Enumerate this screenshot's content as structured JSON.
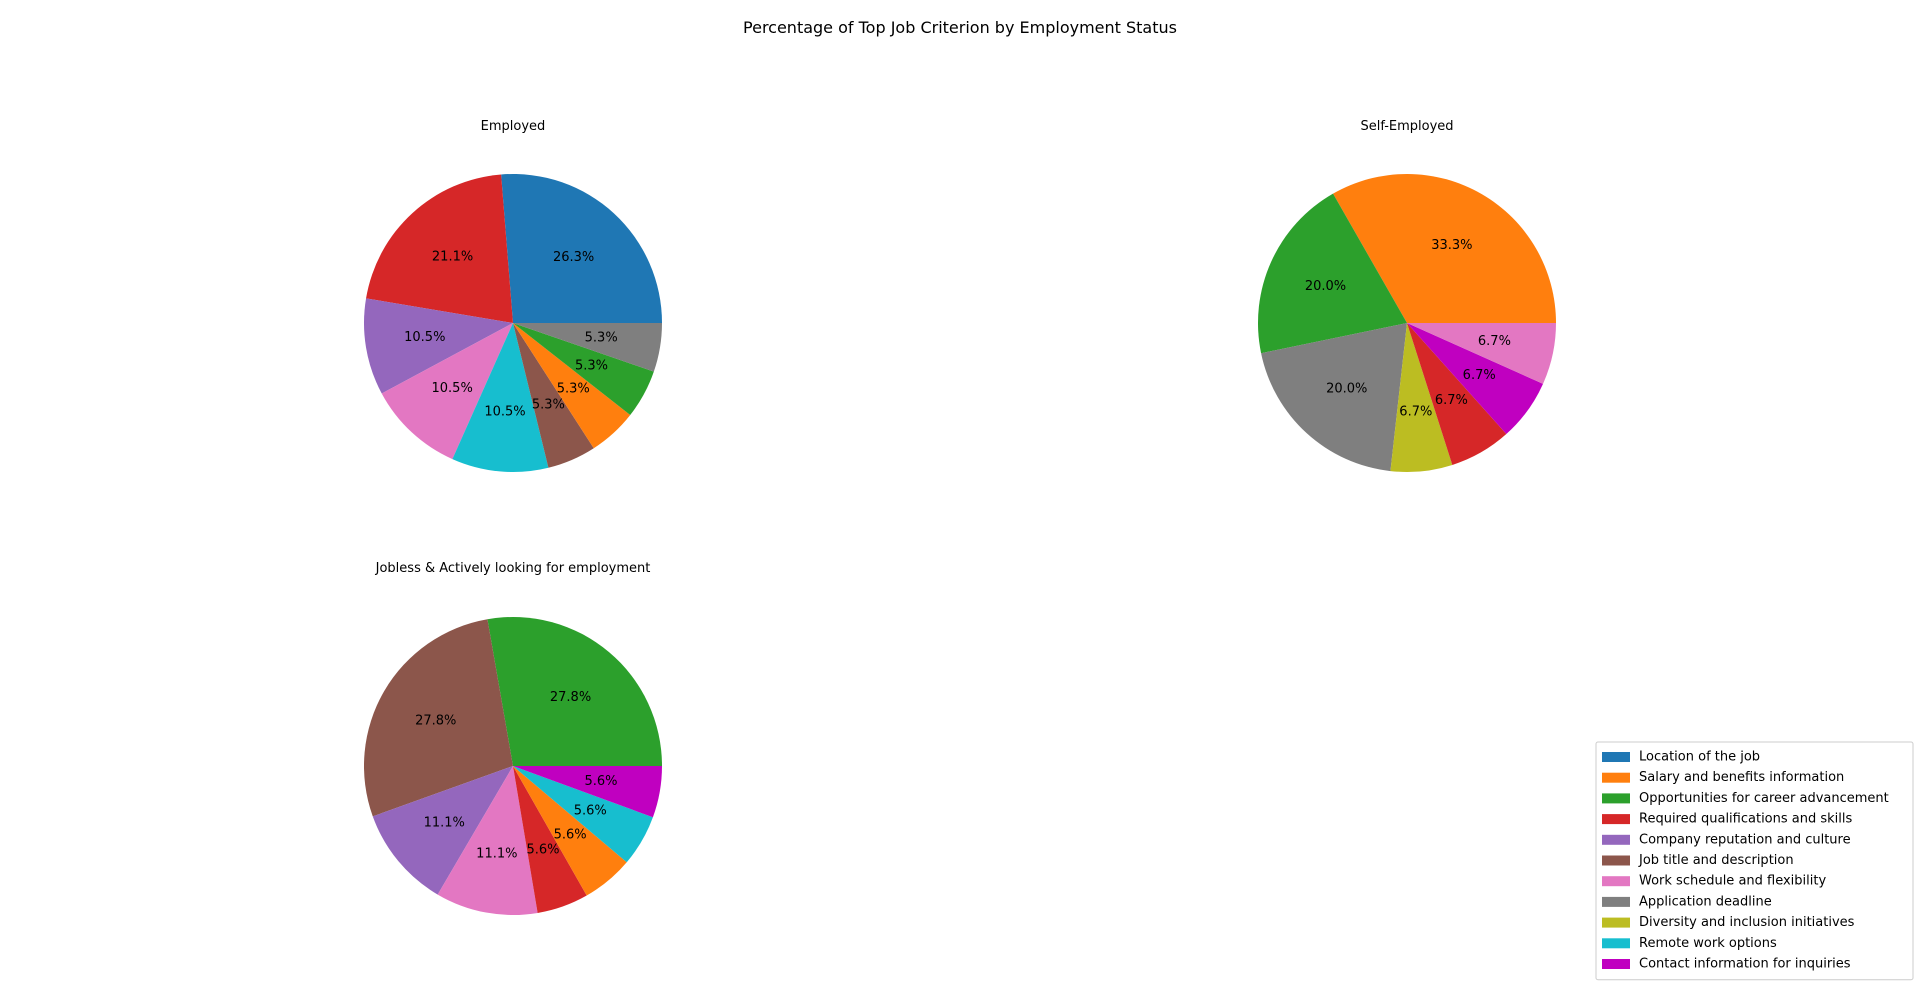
{
  "suptitle": "Percentage of Top Job Criterion by Employment Status",
  "categories": [
    {
      "name": "Location of the job",
      "color": "#1f77b4"
    },
    {
      "name": "Salary and benefits information",
      "color": "#ff7f0e"
    },
    {
      "name": "Opportunities for career advancement",
      "color": "#2ca02c"
    },
    {
      "name": "Required qualifications and skills",
      "color": "#d62728"
    },
    {
      "name": "Company reputation and culture",
      "color": "#9467bd"
    },
    {
      "name": "Job title and description",
      "color": "#8c564b"
    },
    {
      "name": "Work schedule and flexibility",
      "color": "#e377c2"
    },
    {
      "name": "Application deadline",
      "color": "#7f7f7f"
    },
    {
      "name": "Diversity and inclusion initiatives",
      "color": "#bcbd22"
    },
    {
      "name": "Remote work options",
      "color": "#17becf"
    },
    {
      "name": "Contact information for inquiries",
      "color": "#c000c0"
    }
  ],
  "legend": {
    "placement": "bottom-right"
  },
  "chart_data": [
    {
      "type": "pie",
      "title": "Employed",
      "start_angle_deg": 0,
      "direction": "counterclockwise",
      "slices": [
        {
          "label": "Location of the job",
          "value": 26.3,
          "text": "26.3%"
        },
        {
          "label": "Required qualifications and skills",
          "value": 21.1,
          "text": "21.1%"
        },
        {
          "label": "Company reputation and culture",
          "value": 10.5,
          "text": "10.5%"
        },
        {
          "label": "Work schedule and flexibility",
          "value": 10.5,
          "text": "10.5%"
        },
        {
          "label": "Remote work options",
          "value": 10.5,
          "text": "10.5%"
        },
        {
          "label": "Job title and description",
          "value": 5.3,
          "text": "5.3%"
        },
        {
          "label": "Salary and benefits information",
          "value": 5.3,
          "text": "5.3%"
        },
        {
          "label": "Opportunities for career advancement",
          "value": 5.3,
          "text": "5.3%"
        },
        {
          "label": "Application deadline",
          "value": 5.3,
          "text": "5.3%"
        }
      ]
    },
    {
      "type": "pie",
      "title": "Self-Employed",
      "start_angle_deg": 0,
      "direction": "counterclockwise",
      "slices": [
        {
          "label": "Salary and benefits information",
          "value": 33.3,
          "text": "33.3%"
        },
        {
          "label": "Opportunities for career advancement",
          "value": 20.0,
          "text": "20.0%"
        },
        {
          "label": "Application deadline",
          "value": 20.0,
          "text": "20.0%"
        },
        {
          "label": "Diversity and inclusion initiatives",
          "value": 6.7,
          "text": "6.7%"
        },
        {
          "label": "Required qualifications and skills",
          "value": 6.7,
          "text": "6.7%"
        },
        {
          "label": "Contact information for inquiries",
          "value": 6.7,
          "text": "6.7%"
        },
        {
          "label": "Work schedule and flexibility",
          "value": 6.7,
          "text": "6.7%"
        }
      ]
    },
    {
      "type": "pie",
      "title": "Jobless & Actively looking for employment",
      "start_angle_deg": 0,
      "direction": "counterclockwise",
      "slices": [
        {
          "label": "Opportunities for career advancement",
          "value": 27.8,
          "text": "27.8%"
        },
        {
          "label": "Job title and description",
          "value": 27.8,
          "text": "27.8%"
        },
        {
          "label": "Company reputation and culture",
          "value": 11.1,
          "text": "11.1%"
        },
        {
          "label": "Work schedule and flexibility",
          "value": 11.1,
          "text": "11.1%"
        },
        {
          "label": "Required qualifications and skills",
          "value": 5.6,
          "text": "5.6%"
        },
        {
          "label": "Salary and benefits information",
          "value": 5.6,
          "text": "5.6%"
        },
        {
          "label": "Remote work options",
          "value": 5.6,
          "text": "5.6%"
        },
        {
          "label": "Contact information for inquiries",
          "value": 5.6,
          "text": "5.6%"
        }
      ]
    }
  ]
}
